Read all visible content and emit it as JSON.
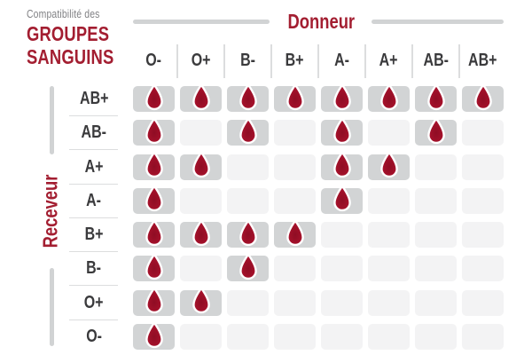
{
  "title": {
    "subtitle": "Compatibilité des",
    "line1": "GROUPES",
    "line2": "SANGUINS"
  },
  "axes": {
    "donor_label": "Donneur",
    "receiver_label": "Receveur"
  },
  "chart_data": {
    "type": "heatmap",
    "title": "Compatibilité des GROUPES SANGUINS",
    "x_axis_label": "Donneur",
    "y_axis_label": "Receveur",
    "donors": [
      "O-",
      "O+",
      "B-",
      "B+",
      "A-",
      "A+",
      "AB-",
      "AB+"
    ],
    "receivers": [
      "AB+",
      "AB-",
      "A+",
      "A-",
      "B+",
      "B-",
      "O+",
      "O-"
    ],
    "matrix": [
      [
        1,
        1,
        1,
        1,
        1,
        1,
        1,
        1
      ],
      [
        1,
        0,
        1,
        0,
        1,
        0,
        1,
        0
      ],
      [
        1,
        1,
        0,
        0,
        1,
        1,
        0,
        0
      ],
      [
        1,
        0,
        0,
        0,
        1,
        0,
        0,
        0
      ],
      [
        1,
        1,
        1,
        1,
        0,
        0,
        0,
        0
      ],
      [
        1,
        0,
        1,
        0,
        0,
        0,
        0,
        0
      ],
      [
        1,
        1,
        0,
        0,
        0,
        0,
        0,
        0
      ],
      [
        1,
        0,
        0,
        0,
        0,
        0,
        0,
        0
      ]
    ],
    "legend": "blood-drop-icon = compatible, empty cell = incompatible"
  },
  "icons": {
    "compatible": "blood-drop-icon"
  },
  "colors": {
    "accent_red": "#A31E31",
    "drop_red": "#A8102C",
    "cell_on": "#D2D4D5",
    "cell_off": "#F3F3F4",
    "line_gray": "#D1D3D4",
    "line_light": "#DCDDDE",
    "header_text": "#3A3A3C",
    "subtitle_gray": "#808184"
  }
}
